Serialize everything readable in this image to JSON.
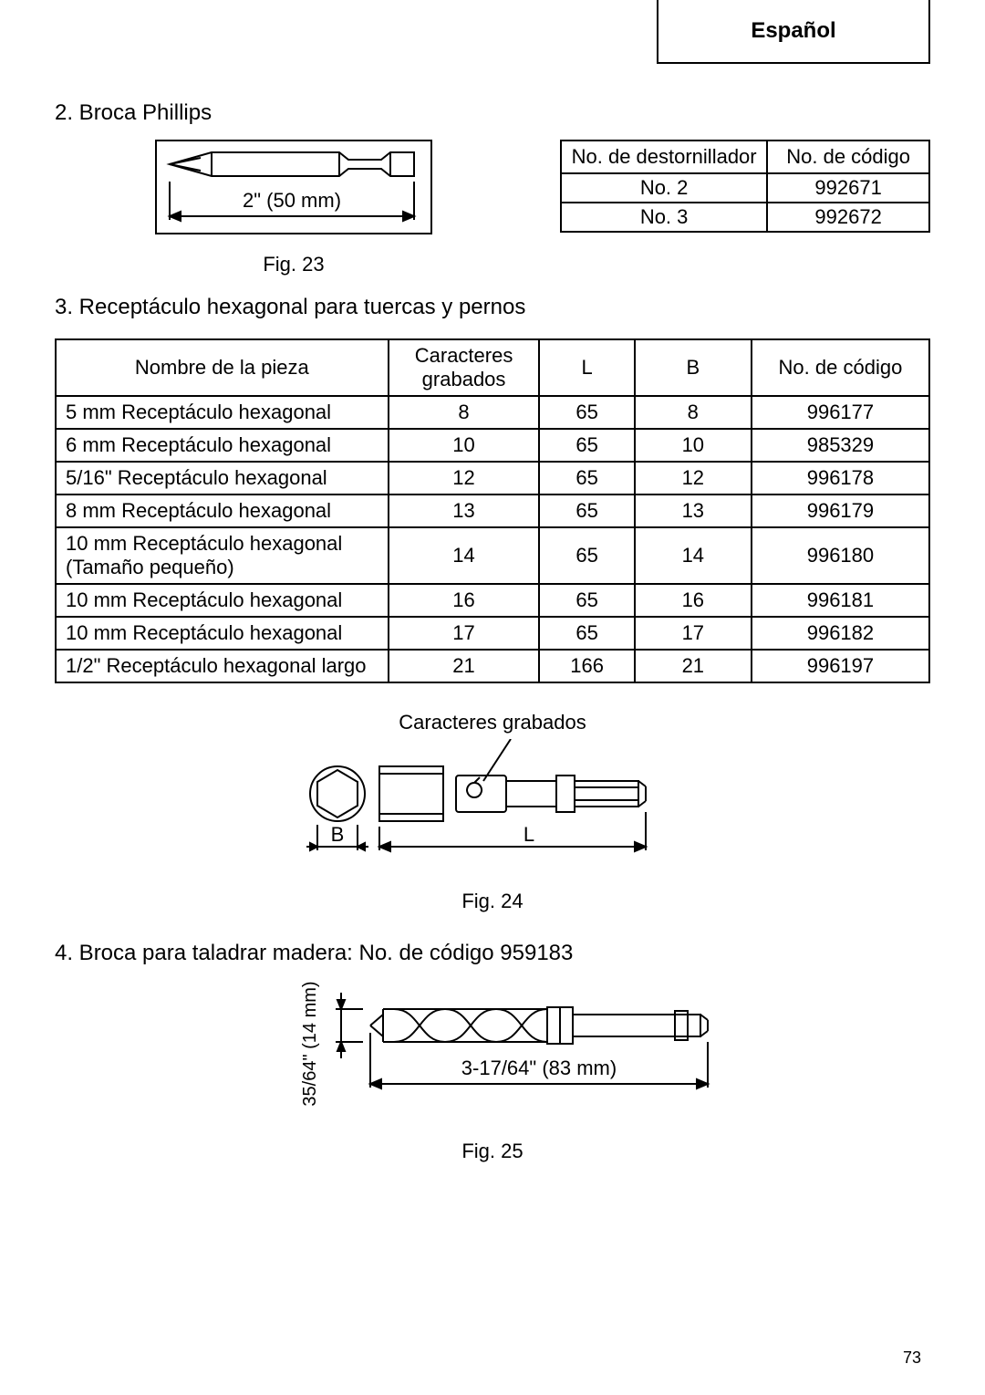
{
  "lang_label": "Español",
  "section2": {
    "title": "2.  Broca Phillips",
    "figure_dim": "2\" (50 mm)",
    "figure_caption": "Fig. 23",
    "table": {
      "headers": [
        "No.  de  destornillador",
        "No.  de  código"
      ],
      "rows": [
        [
          "No.  2",
          "992671"
        ],
        [
          "No.  3",
          "992672"
        ]
      ]
    }
  },
  "section3": {
    "title": "3.  Receptáculo hexagonal para tuercas y pernos",
    "table": {
      "headers": [
        "Nombre de la pieza",
        "Caracteres grabados",
        "L",
        "B",
        "No. de código"
      ],
      "col_widths": [
        "380px",
        "150px",
        "90px",
        "120px",
        "190px"
      ],
      "rows": [
        [
          "5 mm Receptáculo hexagonal",
          "8",
          "65",
          "8",
          "996177"
        ],
        [
          "6 mm Receptáculo hexagonal",
          "10",
          "65",
          "10",
          "985329"
        ],
        [
          "5/16\" Receptáculo hexagonal",
          "12",
          "65",
          "12",
          "996178"
        ],
        [
          "8 mm Receptáculo hexagonal",
          "13",
          "65",
          "13",
          "996179"
        ],
        [
          "10 mm Receptáculo hexagonal (Tamaño pequeño)",
          "14",
          "65",
          "14",
          "996180"
        ],
        [
          "10 mm Receptáculo hexagonal",
          "16",
          "65",
          "16",
          "996181"
        ],
        [
          "10 mm Receptáculo hexagonal",
          "17",
          "65",
          "17",
          "996182"
        ],
        [
          "1/2\" Receptáculo hexagonal largo",
          "21",
          "166",
          "21",
          "996197"
        ]
      ]
    },
    "fig24_label_top": "Caracteres grabados",
    "fig24_B": "B",
    "fig24_L": "L",
    "fig24_caption": "Fig. 24"
  },
  "section4": {
    "title": "4.  Broca para taladrar madera: No. de código 959183",
    "dim_vert": "35/64\" (14 mm)",
    "dim_horiz": "3-17/64\" (83 mm)",
    "caption": "Fig. 25"
  },
  "page_number": "73",
  "colors": {
    "stroke": "#000000",
    "bg": "#ffffff"
  }
}
